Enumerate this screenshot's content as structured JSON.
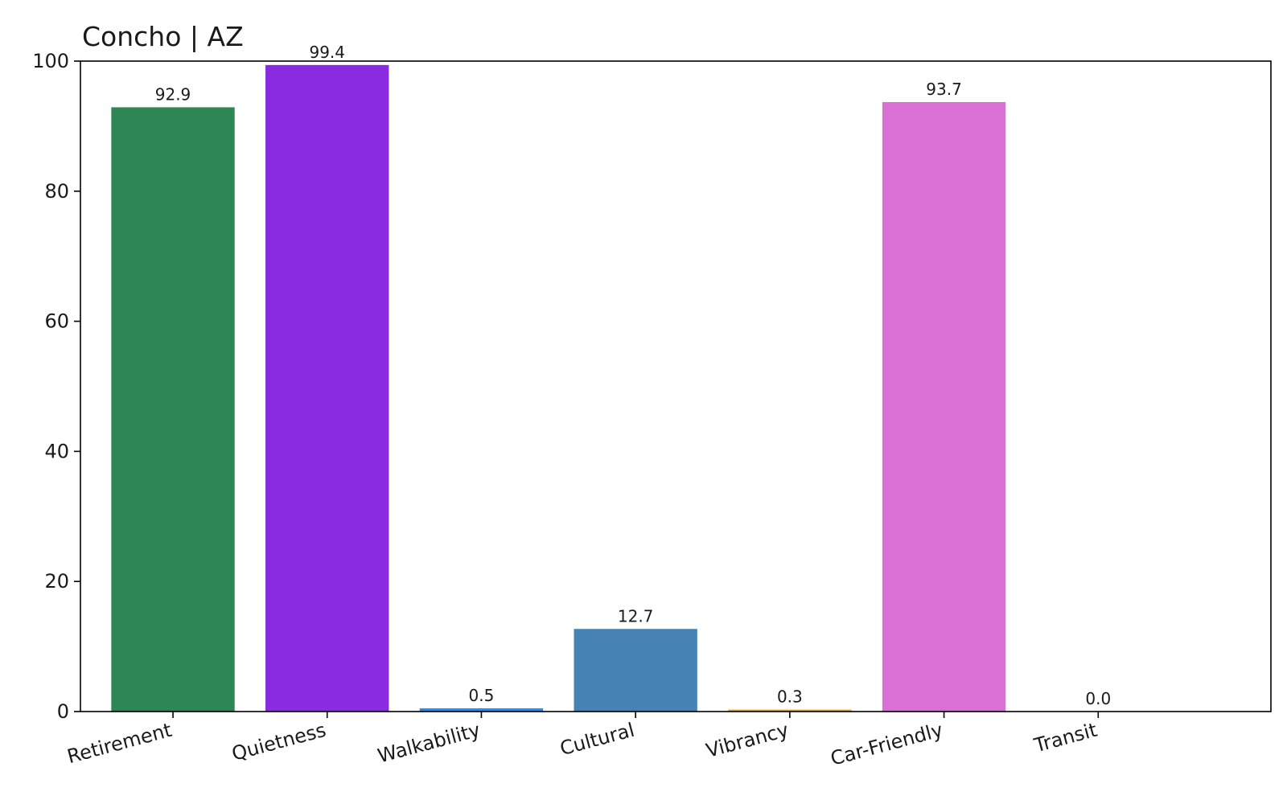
{
  "chart_data": {
    "type": "bar",
    "title": "Concho | AZ",
    "xlabel": "",
    "ylabel": "",
    "categories": [
      "Retirement",
      "Quietness",
      "Walkability",
      "Cultural",
      "Vibrancy",
      "Car-Friendly",
      "Transit"
    ],
    "values": [
      92.9,
      99.4,
      0.5,
      12.7,
      0.3,
      93.7,
      0.0
    ],
    "value_labels": [
      "92.9",
      "99.4",
      "0.5",
      "12.7",
      "0.3",
      "93.7",
      "0.0"
    ],
    "colors": [
      "#2e8555",
      "#8a2be2",
      "#1e90ff",
      "#4682b4",
      "#ffa500",
      "#da70d6",
      "#20b2aa"
    ],
    "ylim": [
      0,
      100
    ],
    "yticks": [
      0,
      20,
      40,
      60,
      80,
      100
    ],
    "ytick_labels": [
      "0",
      "20",
      "40",
      "60",
      "80",
      "100"
    ],
    "grid": false,
    "legend": "none",
    "xtick_rotation": "slanted"
  }
}
